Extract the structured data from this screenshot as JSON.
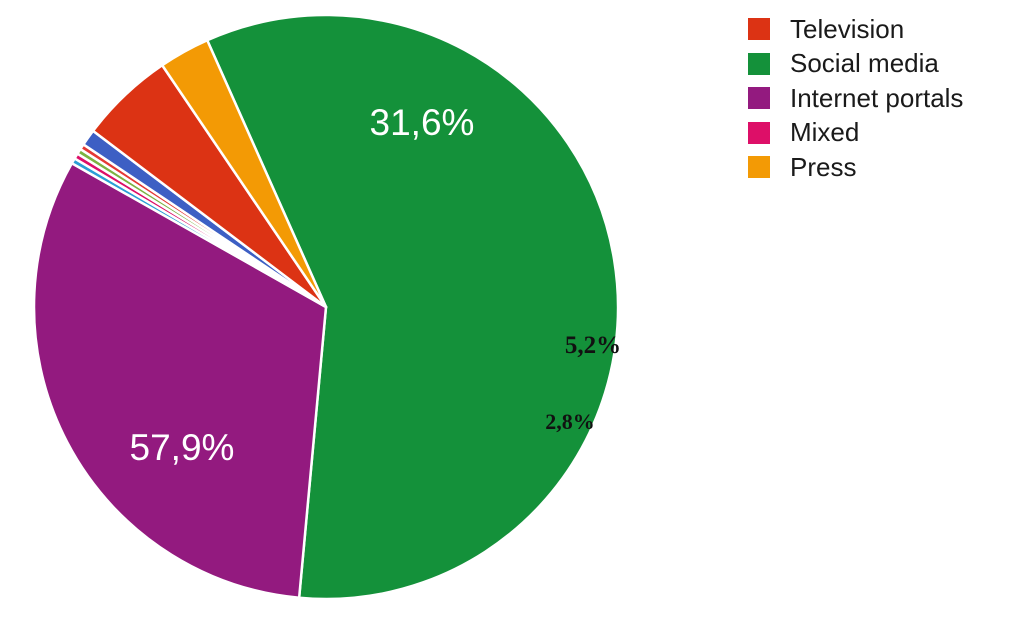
{
  "chart_data": {
    "type": "pie",
    "series": [
      {
        "name": "Social media",
        "value": 57.9,
        "label": "57,9%",
        "color": "#14913a"
      },
      {
        "name": "Internet portals",
        "value": 31.6,
        "label": "31,6%",
        "color": "#931a7f"
      },
      {
        "name": "",
        "value": 0.3,
        "label": "",
        "color": "#2a9fd6"
      },
      {
        "name": "",
        "value": 0.3,
        "label": "",
        "color": "#dd0f68"
      },
      {
        "name": "",
        "value": 0.3,
        "label": "",
        "color": "#7cb342"
      },
      {
        "name": "",
        "value": 0.3,
        "label": "",
        "color": "#e53935"
      },
      {
        "name": "",
        "value": 0.9,
        "label": "",
        "color": "#3d5fc4"
      },
      {
        "name": "Television",
        "value": 5.2,
        "label": "5,2%",
        "color": "#dc3314"
      },
      {
        "name": "Press",
        "value": 2.8,
        "label": "2,8%",
        "color": "#f39a05"
      }
    ],
    "legend": [
      {
        "name": "Television",
        "color": "#dc3314"
      },
      {
        "name": "Social media",
        "color": "#14913a"
      },
      {
        "name": "Internet portals",
        "color": "#931a7f"
      },
      {
        "name": "Mixed",
        "color": "#dd0f68"
      },
      {
        "name": "Press",
        "color": "#f39a05"
      }
    ],
    "legend_position": "top-right"
  }
}
